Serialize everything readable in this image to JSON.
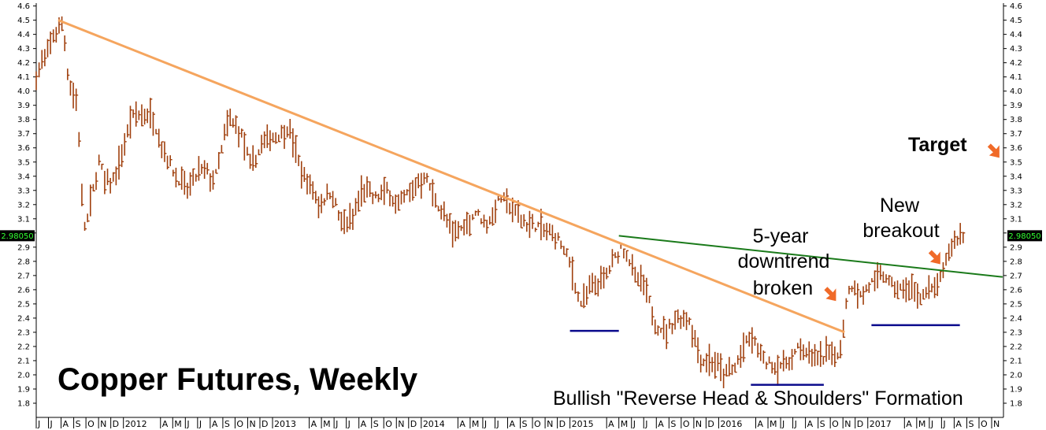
{
  "chart_data": {
    "type": "ohlc-bar",
    "title": "Copper Futures, Weekly",
    "subtitle": "Bullish \"Reverse Head & Shoulders\" Formation",
    "current_price_label": "2.98050",
    "colors": {
      "bars": "#A0400E",
      "downtrend_line": "#F5A55E",
      "neckline": "#1A7A1A",
      "shoulder_marks": "#0A0A8C",
      "arrows": "#F06A28",
      "price_box": "#000000",
      "price_text": "#33FF33"
    },
    "ylim": [
      1.7,
      4.62
    ],
    "y_ticks": [
      "1.8",
      "1.9",
      "2.0",
      "2.1",
      "2.2",
      "2.3",
      "2.4",
      "2.5",
      "2.6",
      "2.7",
      "2.8",
      "2.9",
      "3.0",
      "3.1",
      "3.2",
      "3.3",
      "3.4",
      "3.5",
      "3.6",
      "3.7",
      "3.8",
      "3.9",
      "4.0",
      "4.1",
      "4.2",
      "4.3",
      "4.4",
      "4.5",
      "4.6"
    ],
    "x_range": [
      "2011-06-01",
      "2017-11-30"
    ],
    "x_ticks": [
      {
        "label": "J",
        "date": "2011-06-01"
      },
      {
        "label": "J",
        "date": "2011-07-01"
      },
      {
        "label": "A",
        "date": "2011-08-01"
      },
      {
        "label": "S",
        "date": "2011-09-01"
      },
      {
        "label": "O",
        "date": "2011-10-01"
      },
      {
        "label": "N",
        "date": "2011-11-01"
      },
      {
        "label": "D",
        "date": "2011-12-01"
      },
      {
        "label": "2012",
        "date": "2012-01-01"
      },
      {
        "label": "A",
        "date": "2012-04-01"
      },
      {
        "label": "M",
        "date": "2012-05-01"
      },
      {
        "label": "J",
        "date": "2012-06-01"
      },
      {
        "label": "J",
        "date": "2012-07-01"
      },
      {
        "label": "A",
        "date": "2012-08-01"
      },
      {
        "label": "S",
        "date": "2012-09-01"
      },
      {
        "label": "O",
        "date": "2012-10-01"
      },
      {
        "label": "N",
        "date": "2012-11-01"
      },
      {
        "label": "D",
        "date": "2012-12-01"
      },
      {
        "label": "2013",
        "date": "2013-01-01"
      },
      {
        "label": "A",
        "date": "2013-04-01"
      },
      {
        "label": "M",
        "date": "2013-05-01"
      },
      {
        "label": "J",
        "date": "2013-06-01"
      },
      {
        "label": "J",
        "date": "2013-07-01"
      },
      {
        "label": "A",
        "date": "2013-08-01"
      },
      {
        "label": "S",
        "date": "2013-09-01"
      },
      {
        "label": "O",
        "date": "2013-10-01"
      },
      {
        "label": "N",
        "date": "2013-11-01"
      },
      {
        "label": "D",
        "date": "2013-12-01"
      },
      {
        "label": "2014",
        "date": "2014-01-01"
      },
      {
        "label": "A",
        "date": "2014-04-01"
      },
      {
        "label": "M",
        "date": "2014-05-01"
      },
      {
        "label": "J",
        "date": "2014-06-01"
      },
      {
        "label": "J",
        "date": "2014-07-01"
      },
      {
        "label": "A",
        "date": "2014-08-01"
      },
      {
        "label": "S",
        "date": "2014-09-01"
      },
      {
        "label": "O",
        "date": "2014-10-01"
      },
      {
        "label": "N",
        "date": "2014-11-01"
      },
      {
        "label": "D",
        "date": "2014-12-01"
      },
      {
        "label": "2015",
        "date": "2015-01-01"
      },
      {
        "label": "A",
        "date": "2015-04-01"
      },
      {
        "label": "M",
        "date": "2015-05-01"
      },
      {
        "label": "J",
        "date": "2015-06-01"
      },
      {
        "label": "J",
        "date": "2015-07-01"
      },
      {
        "label": "A",
        "date": "2015-08-01"
      },
      {
        "label": "S",
        "date": "2015-09-01"
      },
      {
        "label": "O",
        "date": "2015-10-01"
      },
      {
        "label": "N",
        "date": "2015-11-01"
      },
      {
        "label": "D",
        "date": "2015-12-01"
      },
      {
        "label": "2016",
        "date": "2016-01-01"
      },
      {
        "label": "A",
        "date": "2016-04-01"
      },
      {
        "label": "M",
        "date": "2016-05-01"
      },
      {
        "label": "J",
        "date": "2016-06-01"
      },
      {
        "label": "J",
        "date": "2016-07-01"
      },
      {
        "label": "A",
        "date": "2016-08-01"
      },
      {
        "label": "S",
        "date": "2016-09-01"
      },
      {
        "label": "O",
        "date": "2016-10-01"
      },
      {
        "label": "N",
        "date": "2016-11-01"
      },
      {
        "label": "D",
        "date": "2016-12-01"
      },
      {
        "label": "2017",
        "date": "2017-01-01"
      },
      {
        "label": "A",
        "date": "2017-04-01"
      },
      {
        "label": "M",
        "date": "2017-05-01"
      },
      {
        "label": "J",
        "date": "2017-06-01"
      },
      {
        "label": "J",
        "date": "2017-07-01"
      },
      {
        "label": "A",
        "date": "2017-08-01"
      },
      {
        "label": "S",
        "date": "2017-09-01"
      },
      {
        "label": "O",
        "date": "2017-10-01"
      },
      {
        "label": "N",
        "date": "2017-11-01"
      }
    ],
    "price_path": [
      [
        "2011-06-01",
        4.1
      ],
      [
        "2011-07-15",
        4.4
      ],
      [
        "2011-08-05",
        4.5
      ],
      [
        "2011-08-20",
        4.05
      ],
      [
        "2011-09-10",
        3.9
      ],
      [
        "2011-09-25",
        3.05
      ],
      [
        "2011-10-05",
        3.1
      ],
      [
        "2011-11-01",
        3.5
      ],
      [
        "2011-11-20",
        3.35
      ],
      [
        "2011-12-15",
        3.4
      ],
      [
        "2012-01-20",
        3.8
      ],
      [
        "2012-02-20",
        3.85
      ],
      [
        "2012-03-15",
        3.8
      ],
      [
        "2012-04-05",
        3.6
      ],
      [
        "2012-05-10",
        3.4
      ],
      [
        "2012-06-05",
        3.3
      ],
      [
        "2012-06-25",
        3.4
      ],
      [
        "2012-07-20",
        3.45
      ],
      [
        "2012-08-10",
        3.35
      ],
      [
        "2012-09-15",
        3.8
      ],
      [
        "2012-10-15",
        3.7
      ],
      [
        "2012-11-10",
        3.45
      ],
      [
        "2012-12-10",
        3.65
      ],
      [
        "2013-01-20",
        3.7
      ],
      [
        "2013-02-10",
        3.75
      ],
      [
        "2013-03-10",
        3.45
      ],
      [
        "2013-04-10",
        3.3
      ],
      [
        "2013-04-25",
        3.2
      ],
      [
        "2013-05-25",
        3.3
      ],
      [
        "2013-06-20",
        3.05
      ],
      [
        "2013-07-15",
        3.1
      ],
      [
        "2013-08-10",
        3.3
      ],
      [
        "2013-09-10",
        3.25
      ],
      [
        "2013-10-10",
        3.3
      ],
      [
        "2013-11-05",
        3.2
      ],
      [
        "2013-12-05",
        3.3
      ],
      [
        "2014-01-10",
        3.4
      ],
      [
        "2014-02-01",
        3.25
      ],
      [
        "2014-03-20",
        3.0
      ],
      [
        "2014-04-20",
        3.05
      ],
      [
        "2014-05-15",
        3.15
      ],
      [
        "2014-06-10",
        3.05
      ],
      [
        "2014-07-15",
        3.25
      ],
      [
        "2014-08-20",
        3.15
      ],
      [
        "2014-09-20",
        3.05
      ],
      [
        "2014-10-15",
        3.05
      ],
      [
        "2014-11-10",
        3.0
      ],
      [
        "2014-12-05",
        2.95
      ],
      [
        "2015-01-05",
        2.75
      ],
      [
        "2015-01-25",
        2.5
      ],
      [
        "2015-02-20",
        2.6
      ],
      [
        "2015-03-20",
        2.65
      ],
      [
        "2015-04-10",
        2.75
      ],
      [
        "2015-05-05",
        2.9
      ],
      [
        "2015-05-20",
        2.85
      ],
      [
        "2015-06-10",
        2.7
      ],
      [
        "2015-07-05",
        2.6
      ],
      [
        "2015-08-01",
        2.35
      ],
      [
        "2015-08-25",
        2.3
      ],
      [
        "2015-09-20",
        2.4
      ],
      [
        "2015-10-20",
        2.4
      ],
      [
        "2015-11-20",
        2.1
      ],
      [
        "2015-12-20",
        2.1
      ],
      [
        "2016-01-15",
        2.0
      ],
      [
        "2016-02-10",
        2.05
      ],
      [
        "2016-03-01",
        2.2
      ],
      [
        "2016-03-25",
        2.25
      ],
      [
        "2016-04-20",
        2.1
      ],
      [
        "2016-05-20",
        2.05
      ],
      [
        "2016-06-20",
        2.1
      ],
      [
        "2016-07-20",
        2.2
      ],
      [
        "2016-08-10",
        2.15
      ],
      [
        "2016-09-05",
        2.1
      ],
      [
        "2016-09-25",
        2.15
      ],
      [
        "2016-10-15",
        2.15
      ],
      [
        "2016-10-28",
        2.2
      ],
      [
        "2016-11-10",
        2.55
      ],
      [
        "2016-11-25",
        2.65
      ],
      [
        "2016-12-15",
        2.55
      ],
      [
        "2017-01-10",
        2.65
      ],
      [
        "2017-02-10",
        2.7
      ],
      [
        "2017-03-10",
        2.6
      ],
      [
        "2017-04-10",
        2.6
      ],
      [
        "2017-05-10",
        2.55
      ],
      [
        "2017-06-10",
        2.6
      ],
      [
        "2017-07-05",
        2.7
      ],
      [
        "2017-07-15",
        2.85
      ],
      [
        "2017-08-05",
        2.95
      ],
      [
        "2017-08-25",
        2.98
      ]
    ],
    "downtrend_line": {
      "from": [
        "2011-07-25",
        4.5
      ],
      "to": [
        "2016-11-05",
        2.3
      ]
    },
    "neckline": {
      "from": [
        "2015-05-01",
        2.98
      ],
      "to": [
        "2017-11-28",
        2.69
      ]
    },
    "left_shoulder_level": {
      "from": [
        "2015-01-01",
        2.31
      ],
      "to": [
        "2015-05-01",
        2.31
      ]
    },
    "head_level": {
      "from": [
        "2016-03-20",
        1.93
      ],
      "to": [
        "2016-09-15",
        1.93
      ]
    },
    "right_shoulder_level": {
      "from": [
        "2017-01-10",
        2.35
      ],
      "to": [
        "2017-08-15",
        2.35
      ]
    },
    "annotations": {
      "downtrend": [
        "5-year",
        "downtrend",
        "broken"
      ],
      "breakout": [
        "New",
        "breakout"
      ],
      "target": "Target"
    },
    "arrows": [
      {
        "name": "downtrend-break-arrow",
        "at": [
          "2016-10-15",
          2.52
        ]
      },
      {
        "name": "breakout-arrow",
        "at": [
          "2017-06-28",
          2.78
        ]
      },
      {
        "name": "target-arrow",
        "at": [
          "2017-11-20",
          3.53
        ]
      }
    ]
  }
}
